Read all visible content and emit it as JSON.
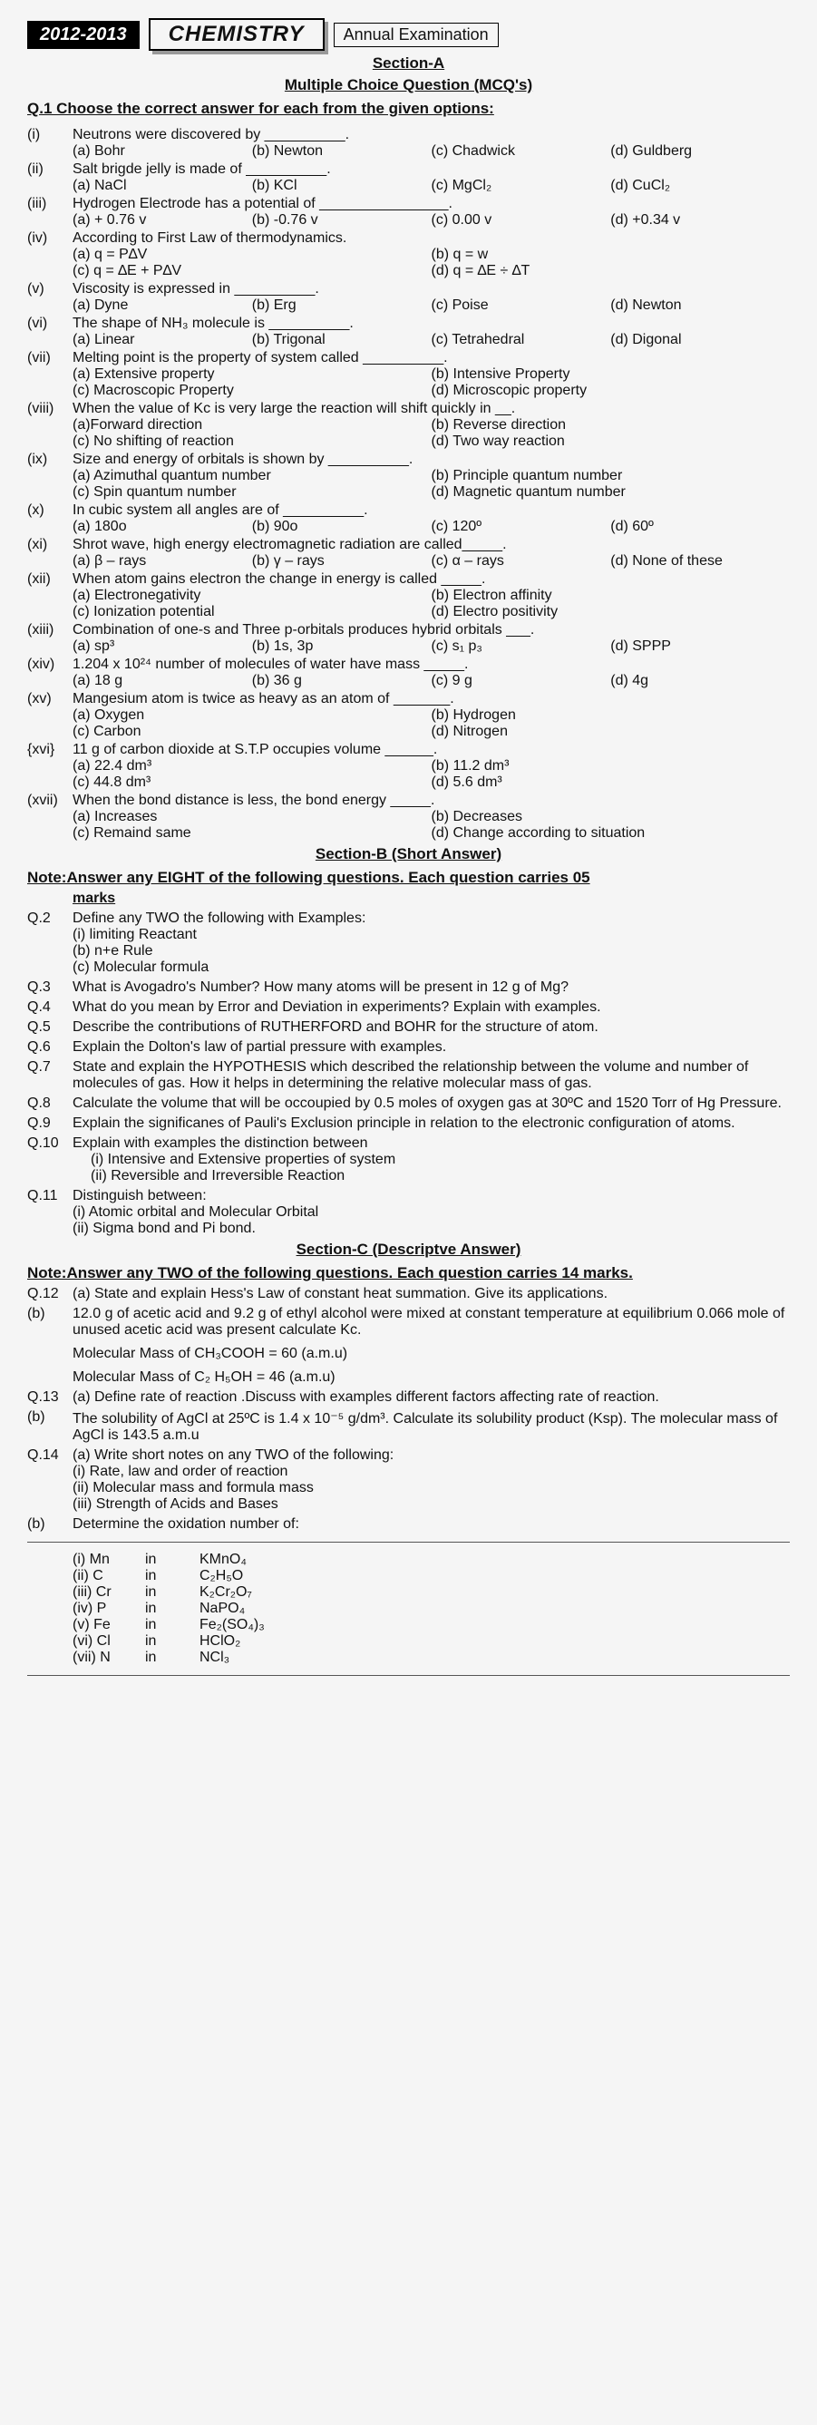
{
  "header": {
    "year": "2012-2013",
    "subject": "CHEMISTRY",
    "exam": "Annual Examination"
  },
  "sectionA": {
    "label": "Section-A",
    "sub": "Multiple Choice Question (MCQ's)",
    "instruction": "Q.1 Choose the correct answer for each from the given options:"
  },
  "mcqs": {
    "i": {
      "n": "(i)",
      "q": "Neutrons were discovered by __________.",
      "a": "(a) Bohr",
      "b": "(b) Newton",
      "c": "(c) Chadwick",
      "d": "(d) Guldberg"
    },
    "ii": {
      "n": "(ii)",
      "q": "Salt brigde jelly is made of __________.",
      "a": "(a) NaCl",
      "b": "(b) KCl",
      "c": "(c) MgCl₂",
      "d": "(d) CuCl₂"
    },
    "iii": {
      "n": "(iii)",
      "q": "Hydrogen Electrode has a potential of ________________.",
      "a": "(a) + 0.76 v",
      "b": "(b) -0.76 v",
      "c": "(c) 0.00 v",
      "d": "(d) +0.34 v"
    },
    "iv": {
      "n": "(iv)",
      "q": "According to First Law of thermodynamics.",
      "a": "(a)  q = P∆V",
      "b": "(b)  q  =  w",
      "c": "(c)  q  =   ∆E + P∆V",
      "d": "(d)  q = ∆E ÷ ∆T"
    },
    "v": {
      "n": "(v)",
      "q": "Viscosity is expressed in __________.",
      "a": "(a) Dyne",
      "b": "(b) Erg",
      "c": "(c) Poise",
      "d": "(d) Newton"
    },
    "vi": {
      "n": "(vi)",
      "q": "The shape of NH₃ molecule is __________.",
      "a": "(a) Linear",
      "b": "(b) Trigonal",
      "c": "(c) Tetrahedral",
      "d": "(d) Digonal"
    },
    "vii": {
      "n": "(vii)",
      "q": "Melting point is the property of system called __________.",
      "a": "(a) Extensive property",
      "b": "(b) Intensive Property",
      "c": "(c) Macroscopic Property",
      "d": "(d) Microscopic property"
    },
    "viii": {
      "n": "(viii)",
      "q": "When the value of Kc is very large the reaction will shift quickly in __.",
      "a": "(a)Forward direction",
      "b": "(b) Reverse direction",
      "c": "(c) No shifting of reaction",
      "d": "(d) Two way reaction"
    },
    "ix": {
      "n": "(ix)",
      "q": "Size and energy of orbitals is shown by __________.",
      "a": "(a) Azimuthal quantum number",
      "b": "(b) Principle quantum number",
      "c": "(c) Spin quantum number",
      "d": "(d) Magnetic quantum number"
    },
    "x": {
      "n": "(x)",
      "q": "In cubic system all angles are of __________.",
      "a": "(a) 180o",
      "b": "(b) 90o",
      "c": "(c) 120º",
      "d": "(d) 60º"
    },
    "xi": {
      "n": "(xi)",
      "q": "Shrot wave, high energy electromagnetic radiation are called_____.",
      "a": "(a)  β – rays",
      "b": "(b)  γ – rays",
      "c": "(c)  α – rays",
      "d": "(d) None of these"
    },
    "xii": {
      "n": "(xii)",
      "q": "When atom gains electron the change in energy is called _____.",
      "a": "(a) Electronegativity",
      "b": "(b) Electron affinity",
      "c": "(c) Ionization potential",
      "d": "(d) Electro positivity"
    },
    "xiii": {
      "n": "(xiii)",
      "q": "Combination of one-s and Three p-orbitals produces hybrid orbitals ___.",
      "a": "(a)  sp³",
      "b": "(b) 1s, 3p",
      "c": "(c) s₁ p₃",
      "d": "(d) SPPP"
    },
    "xiv": {
      "n": "(xiv)",
      "q": "1.204 x 10²⁴ number of molecules of water have mass _____.",
      "a": "(a) 18 g",
      "b": "(b) 36 g",
      "c": "(c) 9 g",
      "d": "(d) 4g"
    },
    "xv": {
      "n": "(xv)",
      "q": "Mangesium atom is twice as heavy as an atom of _______.",
      "a": "(a) Oxygen",
      "b": "(b) Hydrogen",
      "c": "(c) Carbon",
      "d": "(d) Nitrogen"
    },
    "xvi": {
      "n": "{xvi}",
      "q": "11 g of carbon dioxide at S.T.P occupies volume ______.",
      "a": "(a) 22.4 dm³",
      "b": "(b) 11.2 dm³",
      "c": "(c) 44.8 dm³",
      "d": "(d) 5.6 dm³"
    },
    "xvii": {
      "n": "(xvii)",
      "q": "When the bond distance is less, the bond energy _____.",
      "a": "(a) Increases",
      "b": "(b) Decreases",
      "c": "(c) Remaind same",
      "d": "(d) Change according to situation"
    }
  },
  "sectionB": {
    "label": "Section-B (Short Answer)",
    "note": "Note:Answer any EIGHT of the following questions. Each question carries 05",
    "marks": "marks"
  },
  "q2": {
    "n": "Q.2",
    "q": "Define any TWO the following with Examples:",
    "i": "(i) limiting Reactant",
    "ii": "(b) n+e Rule",
    "iii": "(c) Molecular formula"
  },
  "q3": {
    "n": "Q.3",
    "q": "What is Avogadro's Number? How many atoms will be present in 12 g of Mg?"
  },
  "q4": {
    "n": "Q.4",
    "q": "What do you mean by Error and Deviation in experiments? Explain with examples."
  },
  "q5": {
    "n": "Q.5",
    "q": "Describe the contributions of RUTHERFORD and BOHR for the structure of atom."
  },
  "q6": {
    "n": "Q.6",
    "q": "Explain the Dolton's law of partial pressure with examples."
  },
  "q7": {
    "n": "Q.7",
    "q": "State and explain the HYPOTHESIS which described the relationship between the volume and number of molecules of gas. How it helps in determining the relative molecular mass of gas."
  },
  "q8": {
    "n": "Q.8",
    "q": "Calculate the volume that will be occoupied by 0.5 moles of oxygen gas at 30ºC and 1520 Torr of Hg Pressure."
  },
  "q9": {
    "n": "Q.9",
    "q": "Explain the significanes of Pauli's Exclusion principle in relation to the electronic configuration of atoms."
  },
  "q10": {
    "n": "Q.10",
    "q": "Explain with examples the distinction between",
    "i": "(i)      Intensive and Extensive properties of system",
    "ii": "(ii)     Reversible and Irreversible Reaction"
  },
  "q11": {
    "n": "Q.11",
    "q": "Distinguish between:",
    "i": " (i) Atomic orbital and Molecular Orbital",
    "ii": "(ii) Sigma bond and Pi bond."
  },
  "sectionC": {
    "label": "Section-C (Descriptve Answer)",
    "note": "Note:Answer any TWO of the following questions. Each question carries 14 marks."
  },
  "q12": {
    "n": "Q.12",
    "a": "(a) State and explain Hess's Law of constant heat summation. Give its applications.",
    "bn": "(b)",
    "b": "12.0 g of acetic acid and 9.2 g of ethyl alcohol were mixed at constant temperature at equilibrium 0.066 mole of unused acetic acid was present calculate Kc.",
    "m1": "Molecular Mass of CH₃COOH = 60 (a.m.u)",
    "m2": "Molecular Mass of C₂ H₅OH = 46 (a.m.u)"
  },
  "q13": {
    "n": "Q.13",
    "a": "(a) Define rate of reaction .Discuss with examples different factors affecting rate of reaction.",
    "bn": "(b)",
    "b": "The solubility of AgCl at 25ºC is 1.4 x 10⁻⁵ g/dm³. Calculate its solubility product (Ksp). The molecular mass of AgCl is 143.5 a.m.u"
  },
  "q14": {
    "n": "Q.14",
    "a": "(a) Write short notes on any TWO of the following:",
    "i": "(i) Rate, law and order of reaction",
    "ii": "(ii) Molecular mass and formula mass",
    "iii": "(iii) Strength of Acids and Bases",
    "bn": "(b)",
    "b": "Determine the oxidation number of:"
  },
  "ox": {
    "r1": {
      "a": "(i) Mn",
      "b": "in",
      "c": "KMnO₄"
    },
    "r2": {
      "a": "(ii) C",
      "b": "in",
      "c": "C₂H₅O"
    },
    "r3": {
      "a": "(iii) Cr",
      "b": "in",
      "c": "K₂Cr₂O₇"
    },
    "r4": {
      "a": "(iv) P",
      "b": "in",
      "c": "NaPO₄"
    },
    "r5": {
      "a": "(v) Fe",
      "b": "in",
      "c": "Fe₂(SO₄)₃"
    },
    "r6": {
      "a": "(vi) Cl",
      "b": "in",
      "c": "HClO₂"
    },
    "r7": {
      "a": "(vii) N",
      "b": "in",
      "c": "NCl₃"
    }
  }
}
